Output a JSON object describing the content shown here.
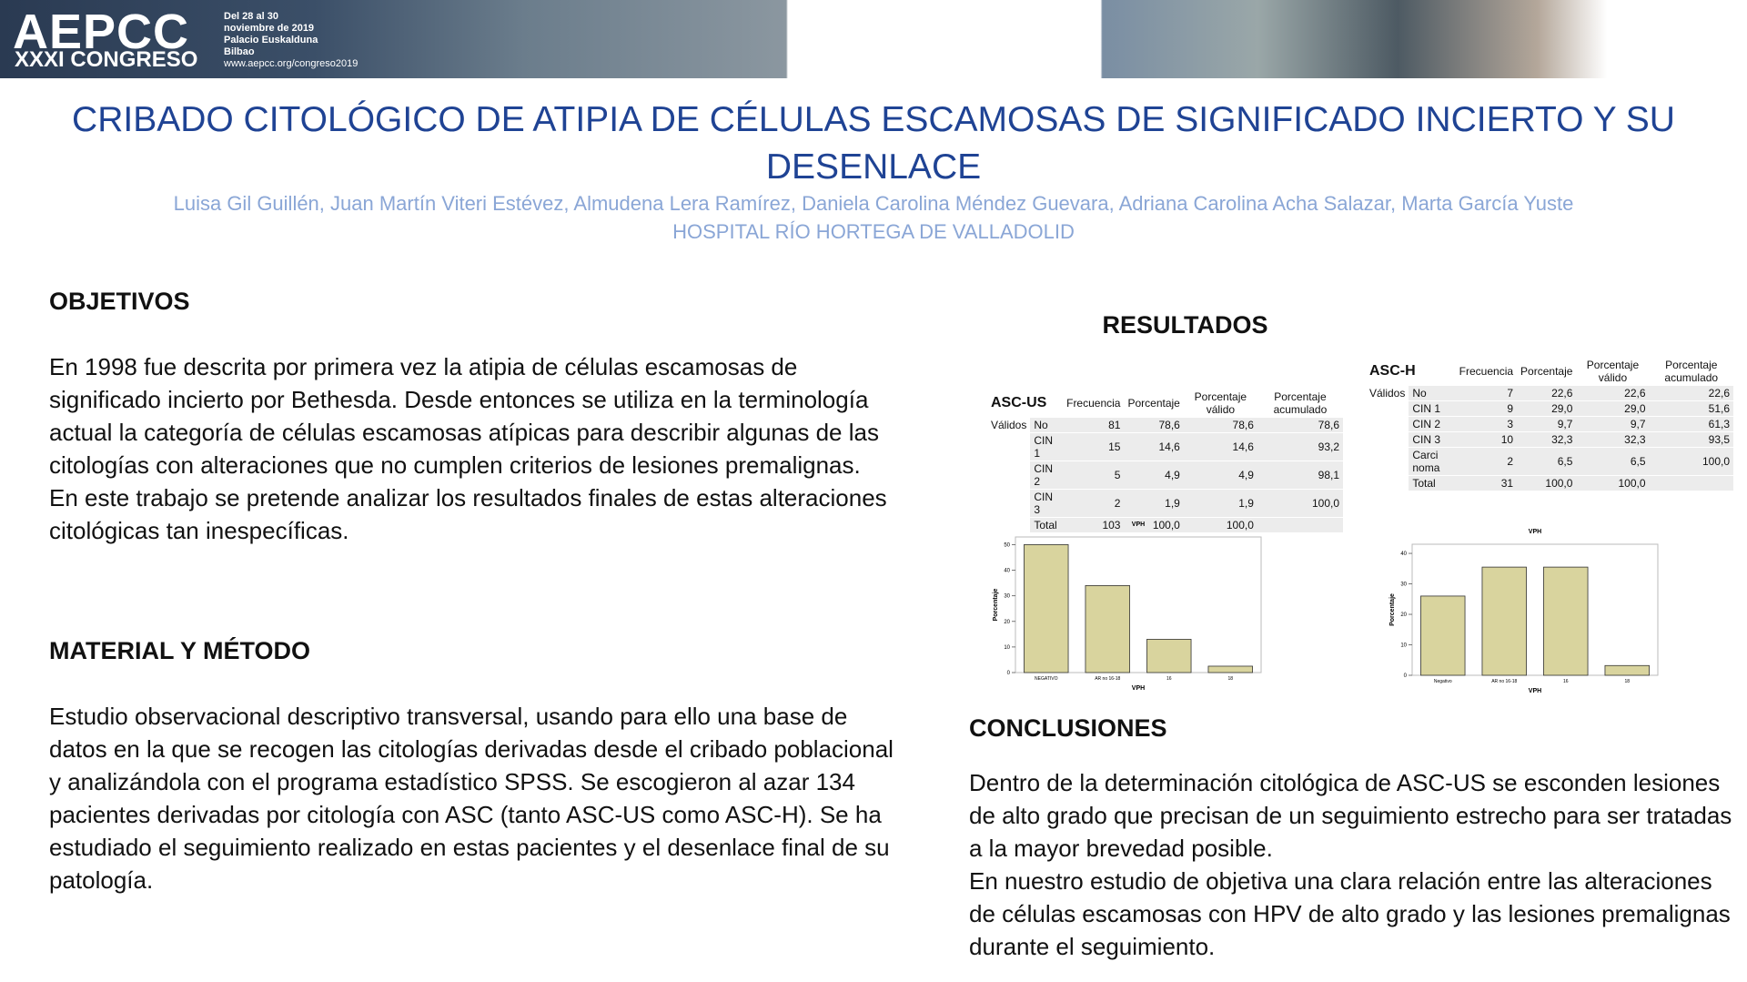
{
  "header": {
    "logo": "AEPCC",
    "congress": "XXXI CONGRESO",
    "dates": [
      "Del 28 al 30",
      "noviembre de 2019",
      "Palacio Euskalduna",
      "Bilbao"
    ],
    "url": "www.aepcc.org/congreso2019"
  },
  "title": "CRIBADO CITOLÓGICO DE ATIPIA DE CÉLULAS ESCAMOSAS DE SIGNIFICADO INCIERTO Y SU DESENLACE",
  "authors": "Luisa Gil Guillén, Juan Martín Viteri Estévez, Almudena Lera Ramírez, Daniela Carolina Méndez Guevara, Adriana Carolina Acha Salazar, Marta García Yuste",
  "institution": "HOSPITAL RÍO HORTEGA DE VALLADOLID",
  "left_sections": [
    {
      "heading": "OBJETIVOS",
      "paragraphs": [
        "En 1998 fue descrita por primera vez la atipia de células escamosas de significado incierto por Bethesda. Desde entonces se utiliza en la terminología actual la categoría de células escamosas atípicas para describir algunas de las citologías con alteraciones que no cumplen criterios de lesiones premalignas.",
        "En este trabajo se pretende analizar los resultados finales de estas alteraciones citológicas tan inespecíficas."
      ]
    },
    {
      "heading": "MATERIAL Y MÉTODO",
      "paragraphs": [
        "Estudio observacional descriptivo transversal, usando para ello una base de datos en la que se recogen las citologías derivadas desde el cribado poblacional y analizándola con el programa estadístico SPSS. Se escogieron al azar 134 pacientes derivadas por citología con ASC (tanto ASC-US como ASC-H). Se ha estudiado el seguimiento realizado en estas pacientes y el desenlace final de su patología."
      ]
    }
  ],
  "results_heading": "RESULTADOS",
  "tables": [
    {
      "title": "ASC-US",
      "columns": [
        "Frecuencia",
        "Porcentaje",
        "Porcentaje válido",
        "Porcentaje acumulado"
      ],
      "group": "Válidos",
      "rows": [
        [
          "No",
          "81",
          "78,6",
          "78,6",
          "78,6"
        ],
        [
          "CIN 1",
          "15",
          "14,6",
          "14,6",
          "93,2"
        ],
        [
          "CIN 2",
          "5",
          "4,9",
          "4,9",
          "98,1"
        ],
        [
          "CIN 3",
          "2",
          "1,9",
          "1,9",
          "100,0"
        ],
        [
          "Total",
          "103",
          "100,0",
          "100,0",
          null
        ]
      ]
    },
    {
      "title": "ASC-H",
      "columns": [
        "Frecuencia",
        "Porcentaje",
        "Porcentaje válido",
        "Porcentaje acumulado"
      ],
      "group": "Válidos",
      "rows": [
        [
          "No",
          "7",
          "22,6",
          "22,6",
          "22,6"
        ],
        [
          "CIN 1",
          "9",
          "29,0",
          "29,0",
          "51,6"
        ],
        [
          "CIN 2",
          "3",
          "9,7",
          "9,7",
          "61,3"
        ],
        [
          "CIN 3",
          "10",
          "32,3",
          "32,3",
          "93,5"
        ],
        [
          "Carci noma",
          "2",
          "6,5",
          "6,5",
          "100,0"
        ],
        [
          "Total",
          "31",
          "100,0",
          "100,0",
          null
        ]
      ]
    }
  ],
  "chart_data": [
    {
      "type": "bar",
      "title": "VPH",
      "x_label": "VPH",
      "y_label": "Porcentaje",
      "categories": [
        "NEGATIVO",
        "AR no 16-18",
        "16",
        "18"
      ],
      "values": [
        50,
        34,
        13,
        2.5
      ],
      "color": "#d9d49e",
      "ylim": [
        0,
        53
      ],
      "yticks": [
        0,
        10,
        20,
        30,
        40,
        50
      ]
    },
    {
      "type": "bar",
      "title": "VPH",
      "x_label": "VPH",
      "y_label": "Porcentaje",
      "categories": [
        "Negativo",
        "AR no 16-18",
        "16",
        "18"
      ],
      "values": [
        26,
        35.5,
        35.5,
        3.2
      ],
      "color": "#d9d49e",
      "ylim": [
        0,
        43
      ],
      "yticks": [
        0,
        10,
        20,
        30,
        40
      ]
    }
  ],
  "conclusions": {
    "heading": "CONCLUSIONES",
    "paragraphs": [
      "Dentro de la determinación citológica de ASC-US se esconden lesiones de alto grado que precisan de un seguimiento estrecho para ser tratadas a la mayor brevedad posible.",
      "En nuestro estudio de objetiva una clara relación entre las alteraciones de células escamosas con HPV de alto grado y las lesiones premalignas durante el seguimiento."
    ]
  }
}
